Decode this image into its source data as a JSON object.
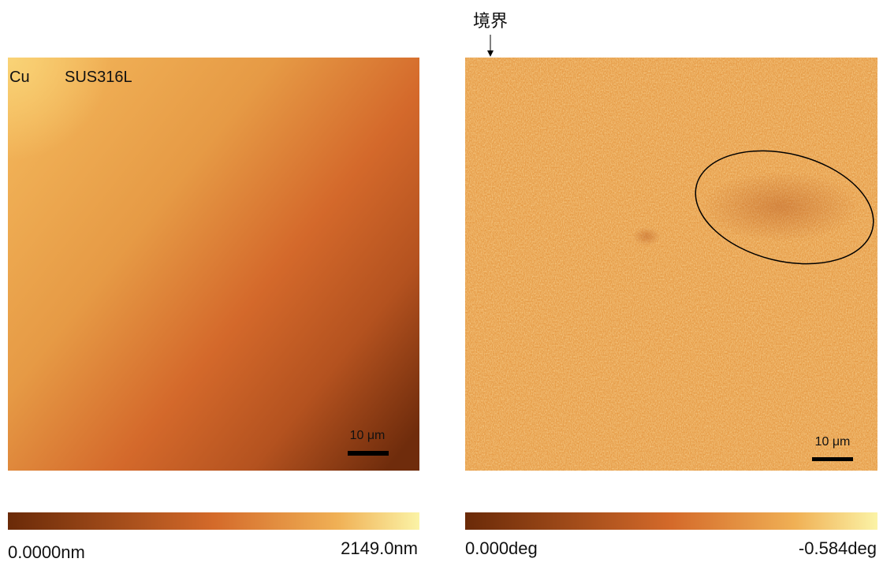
{
  "panels": [
    {
      "labels": [
        "Cu",
        "SUS316L"
      ],
      "scale_bar": "10 μm",
      "colorbar": {
        "min_label": "0.0000nm",
        "max_label": "2149.0nm"
      }
    },
    {
      "annotation": "境界",
      "scale_bar": "10 μm",
      "colorbar": {
        "min_label": "0.000deg",
        "max_label": "-0.584deg"
      }
    }
  ]
}
